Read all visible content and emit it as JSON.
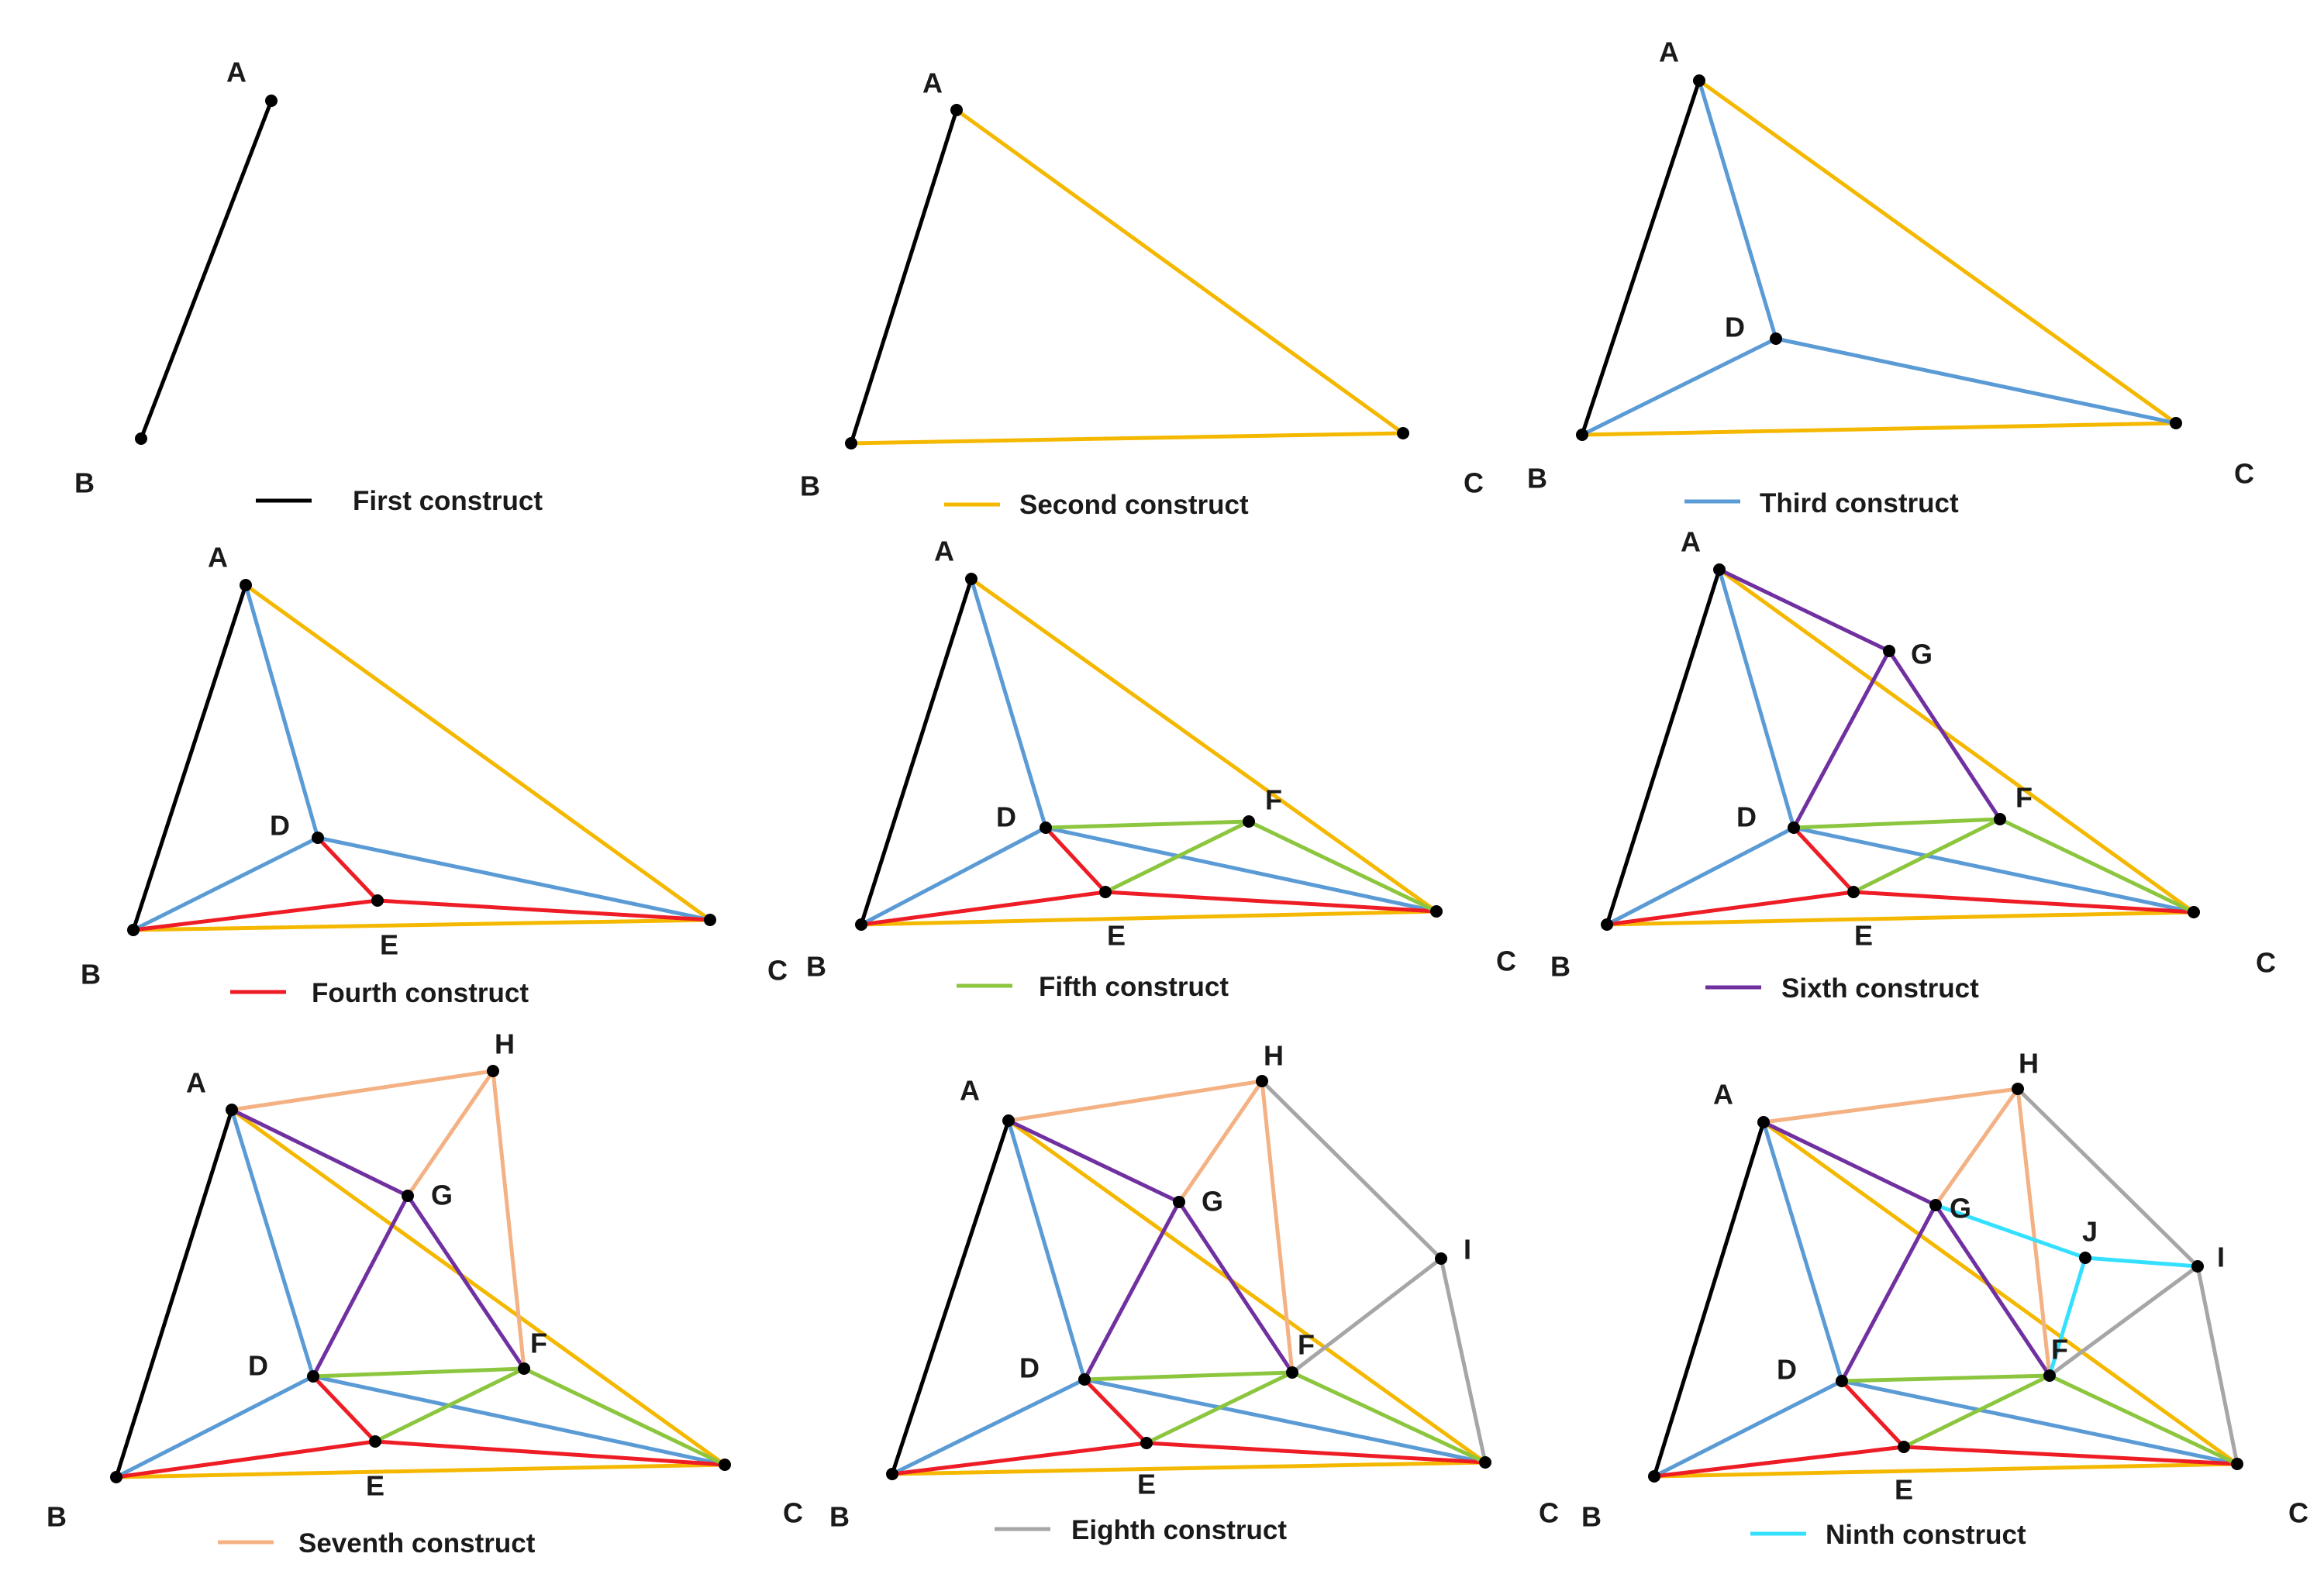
{
  "colors": {
    "black": "#000000",
    "orange": "#f5b800",
    "blue": "#5b9bd5",
    "red": "#ee1c25",
    "green": "#8cc63f",
    "purple": "#7030a0",
    "salmon": "#f4b183",
    "gray": "#a6a6a6",
    "cyan": "#33e0ff"
  },
  "panels": [
    {
      "legend": "First construct",
      "legend_color": "black"
    },
    {
      "legend": "Second construct",
      "legend_color": "orange"
    },
    {
      "legend": "Third construct",
      "legend_color": "blue"
    },
    {
      "legend": "Fourth construct",
      "legend_color": "red"
    },
    {
      "legend": "Fifth  construct",
      "legend_color": "green"
    },
    {
      "legend": "Sixth  construct",
      "legend_color": "purple"
    },
    {
      "legend": "Seventh construct",
      "legend_color": "salmon"
    },
    {
      "legend": "Eighth construct",
      "legend_color": "gray"
    },
    {
      "legend": "Ninth construct",
      "legend_color": "cyan"
    }
  ],
  "point_labels": [
    "A",
    "B",
    "C",
    "D",
    "E",
    "F",
    "G",
    "H",
    "I",
    "J"
  ]
}
